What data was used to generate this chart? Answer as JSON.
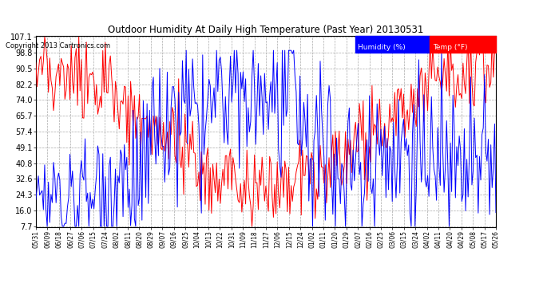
{
  "title": "Outdoor Humidity At Daily High Temperature (Past Year) 20130531",
  "copyright": "Copyright 2013 Cartronics.com",
  "legend_humidity": "Humidity (%)",
  "legend_temp": "Temp (°F)",
  "humidity_color": "blue",
  "temp_color": "red",
  "background_color": "#ffffff",
  "plot_bg_color": "#ffffff",
  "grid_color": "#aaaaaa",
  "yticks": [
    7.7,
    16.0,
    24.3,
    32.6,
    40.8,
    49.1,
    57.4,
    65.7,
    74.0,
    82.2,
    90.5,
    98.8,
    107.1
  ],
  "x_labels": [
    "05/31",
    "06/09",
    "06/18",
    "06/27",
    "07/06",
    "07/15",
    "07/24",
    "08/02",
    "08/11",
    "08/20",
    "08/29",
    "09/07",
    "09/16",
    "09/25",
    "10/04",
    "10/13",
    "10/22",
    "10/31",
    "11/09",
    "11/18",
    "11/27",
    "12/06",
    "12/15",
    "12/24",
    "01/02",
    "01/11",
    "01/20",
    "01/29",
    "02/07",
    "02/16",
    "02/25",
    "03/06",
    "03/15",
    "03/24",
    "04/02",
    "04/11",
    "04/20",
    "04/29",
    "05/08",
    "05/17",
    "05/26"
  ],
  "num_points": 365,
  "ymin": 7.7,
  "ymax": 107.1,
  "figwidth": 6.9,
  "figheight": 3.75,
  "dpi": 100
}
